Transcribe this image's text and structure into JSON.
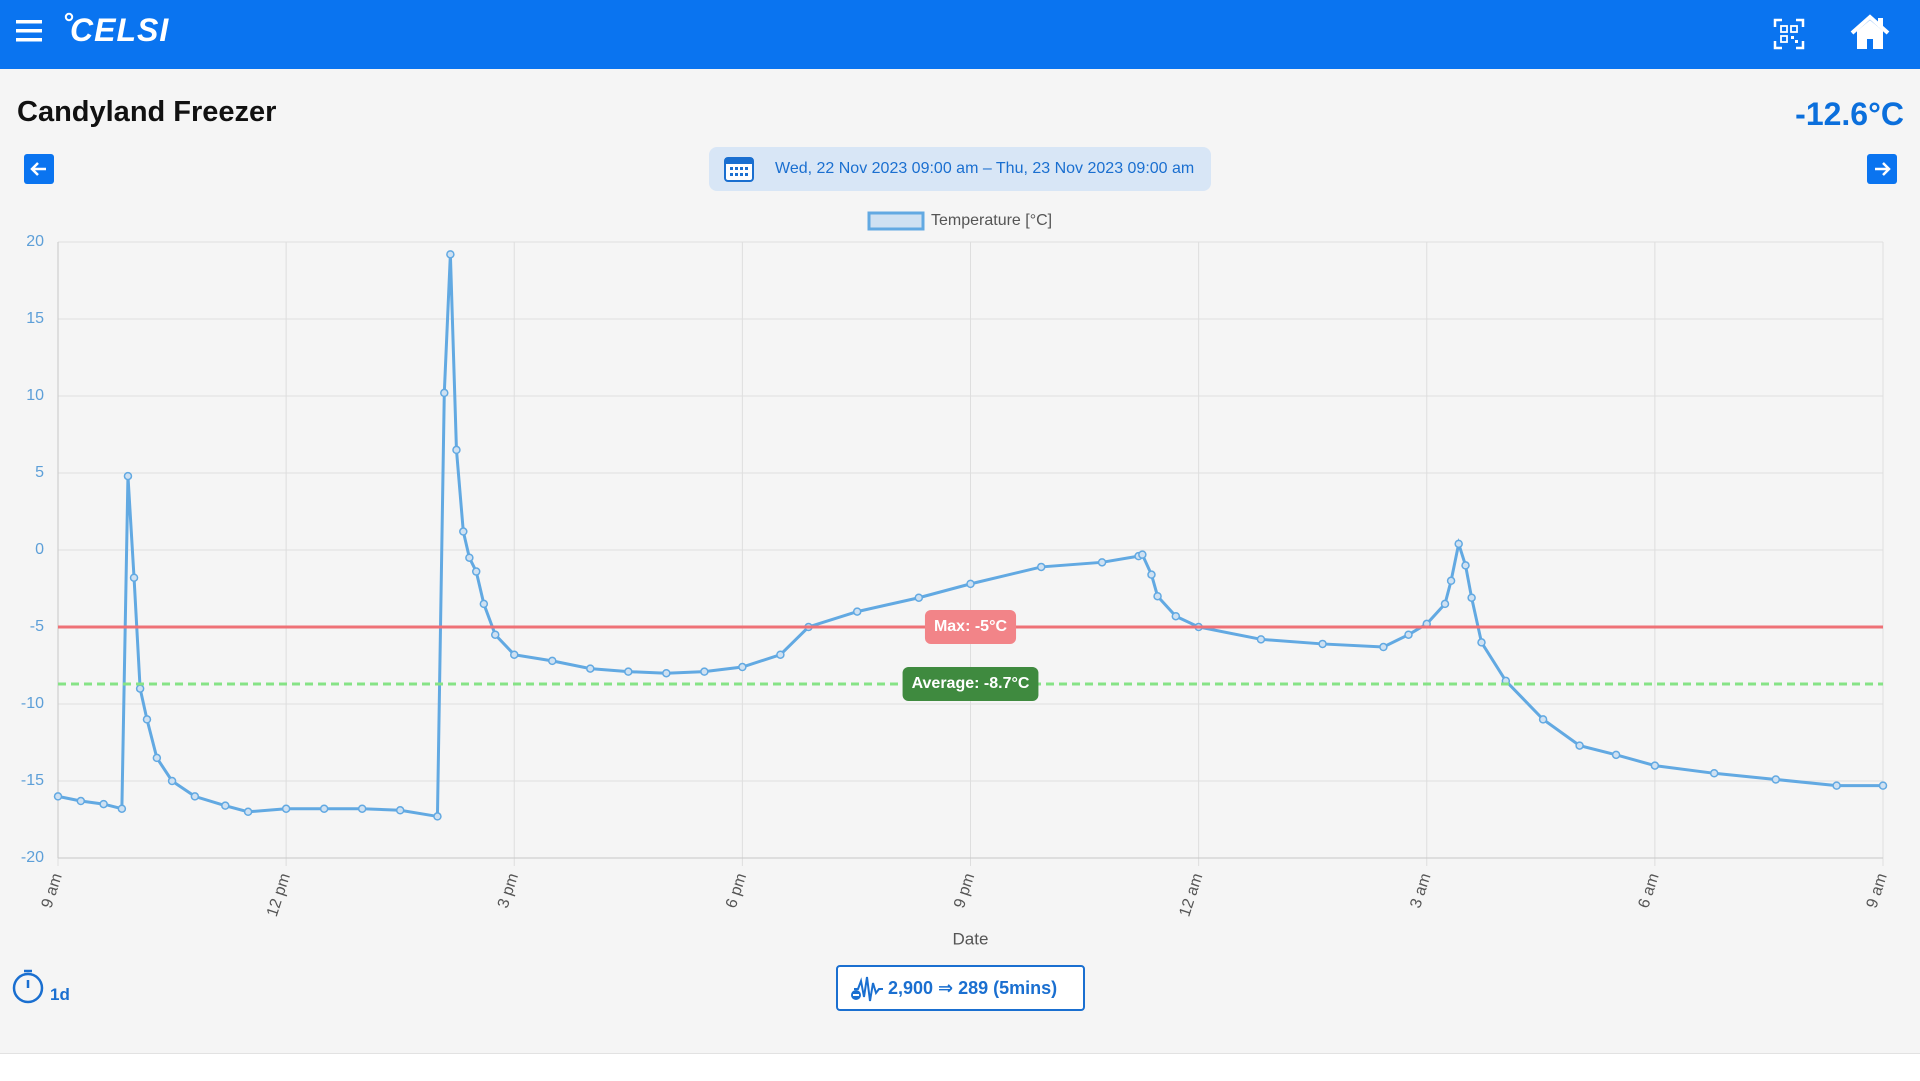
{
  "header": {
    "brand": "CELSI"
  },
  "title": "Candyland Freezer",
  "current": "-12.6°C",
  "date_range": "Wed, 22 Nov 2023 09:00 am – Thu, 23 Nov 2023 09:00 am",
  "period": "1d",
  "sampling": "2,900 ⇒ 289 (5mins)",
  "chart_data": {
    "type": "line",
    "xlabel": "Date",
    "x": [
      0,
      0.3,
      0.6,
      0.84,
      0.92,
      1.0,
      1.08,
      1.17,
      1.3,
      1.5,
      1.8,
      2.2,
      2.5,
      3.0,
      3.5,
      4.0,
      4.5,
      4.99,
      5.08,
      5.16,
      5.24,
      5.33,
      5.41,
      5.5,
      5.6,
      5.75,
      6.0,
      6.5,
      7.0,
      7.5,
      8.0,
      8.5,
      9.0,
      9.5,
      9.87,
      10.51,
      11.32,
      12.0,
      12.93,
      13.73,
      14.21,
      14.26,
      14.38,
      14.46,
      14.7,
      15.0,
      15.82,
      16.63,
      17.43,
      17.76,
      18.0,
      18.24,
      18.32,
      18.42,
      18.51,
      18.59,
      18.72,
      19.04,
      19.53,
      20.01,
      20.49,
      21.0,
      21.78,
      22.59,
      23.39,
      24.0
    ],
    "series": [
      {
        "name": "Temperature [°C]",
        "color": "#62a9e2",
        "values": [
          -16.0,
          -16.3,
          -16.5,
          -16.8,
          4.8,
          -1.8,
          -9.0,
          -11.0,
          -13.5,
          -15.0,
          -16.0,
          -16.6,
          -17.0,
          -16.8,
          -16.8,
          -16.8,
          -16.9,
          -17.3,
          10.2,
          19.2,
          6.5,
          1.2,
          -0.5,
          -1.4,
          -3.5,
          -5.5,
          -6.8,
          -7.2,
          -7.7,
          -7.9,
          -8.0,
          -7.9,
          -7.6,
          -6.8,
          -5.0,
          -4.0,
          -3.1,
          -2.2,
          -1.1,
          -0.8,
          -0.4,
          -0.3,
          -1.6,
          -3.0,
          -4.3,
          -5.0,
          -5.8,
          -6.1,
          -6.3,
          -5.5,
          -4.8,
          -3.5,
          -2.0,
          0.4,
          -1.0,
          -3.1,
          -6.0,
          -8.5,
          -11.0,
          -12.7,
          -13.3,
          -14.0,
          -14.5,
          -14.9,
          -15.3,
          -15.3
        ]
      }
    ],
    "xlim": [
      0,
      24
    ],
    "xticks": [
      {
        "value": 0,
        "label": "9 am"
      },
      {
        "value": 3,
        "label": "12 pm"
      },
      {
        "value": 6,
        "label": "3 pm"
      },
      {
        "value": 9,
        "label": "6 pm"
      },
      {
        "value": 12,
        "label": "9 pm"
      },
      {
        "value": 15,
        "label": "12 am"
      },
      {
        "value": 18,
        "label": "3 am"
      },
      {
        "value": 21,
        "label": "6 am"
      },
      {
        "value": 24,
        "label": "9 am"
      }
    ],
    "ylim": [
      -20,
      20
    ],
    "yticks": [
      20,
      15,
      10,
      5,
      0,
      -5,
      -10,
      -15,
      -20
    ],
    "grid": true,
    "annotations": [
      {
        "label": "Max: -5°C",
        "value": -5,
        "color": "#ee7176",
        "style": "solid",
        "label_color": "#f28488"
      },
      {
        "label": "Average: -8.7°C",
        "value": -8.7,
        "color": "#86e386",
        "style": "dashed",
        "label_color": "#3f8a3f"
      }
    ]
  }
}
